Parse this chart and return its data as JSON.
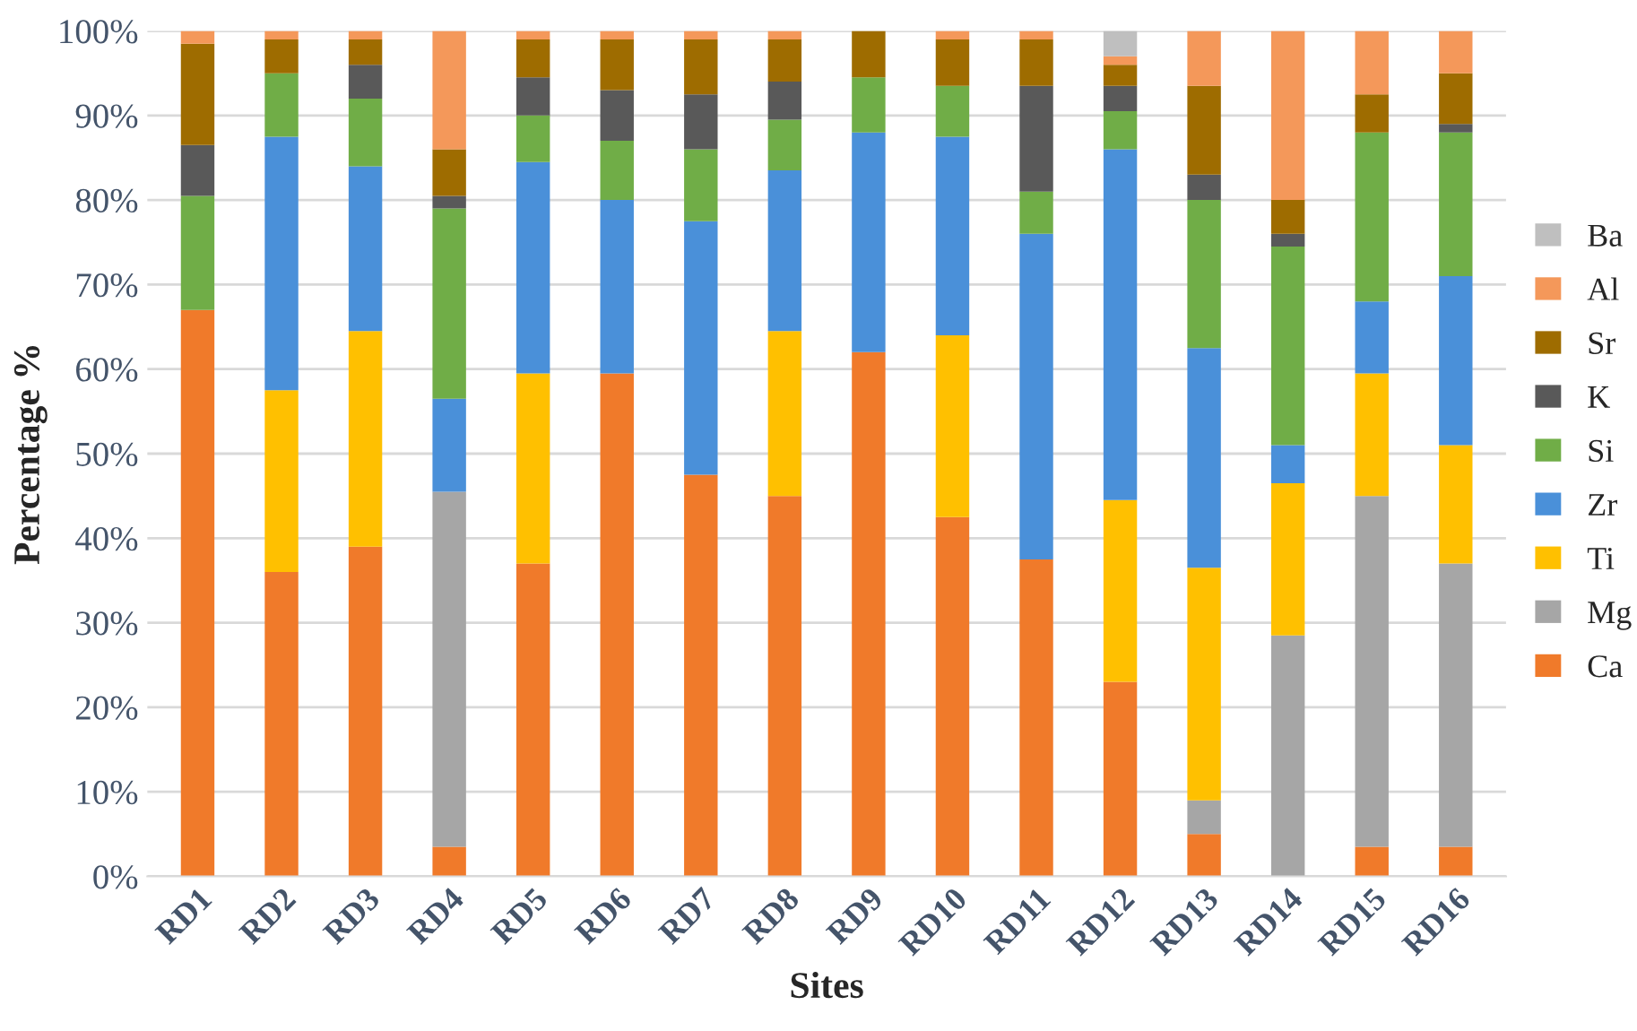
{
  "chart_data": {
    "type": "bar",
    "stacked": true,
    "xlabel": "Sites",
    "ylabel": "Percentage %",
    "categories": [
      "RD1",
      "RD2",
      "RD3",
      "RD4",
      "RD5",
      "RD6",
      "RD7",
      "RD8",
      "RD9",
      "RD10",
      "RD11",
      "RD12",
      "RD13",
      "RD14",
      "RD15",
      "RD16"
    ],
    "series": [
      {
        "name": "Ca",
        "color": "#f07a2a",
        "values": [
          67,
          36,
          39,
          3.5,
          37,
          59.5,
          47.5,
          45,
          62,
          42.5,
          37.5,
          23,
          5,
          0,
          3.5,
          3.5
        ]
      },
      {
        "name": "Mg",
        "color": "#a6a6a6",
        "values": [
          0,
          0,
          0,
          42,
          0,
          0,
          0,
          0,
          0,
          0,
          0,
          0,
          4,
          28.5,
          41.5,
          33.5
        ]
      },
      {
        "name": "Ti",
        "color": "#ffc000",
        "values": [
          0,
          21.5,
          25.5,
          0,
          22.5,
          0,
          0,
          19.5,
          0,
          21.5,
          0,
          21.5,
          27.5,
          18,
          14.5,
          14
        ]
      },
      {
        "name": "Zr",
        "color": "#4a90d9",
        "values": [
          0,
          30,
          19.5,
          11,
          25,
          20.5,
          30,
          19,
          26,
          23.5,
          38.5,
          41.5,
          26,
          4.5,
          8.5,
          20
        ]
      },
      {
        "name": "Si",
        "color": "#70ad47",
        "values": [
          13.5,
          7.5,
          8,
          22.5,
          5.5,
          7,
          8.5,
          6,
          6.5,
          6,
          5,
          4.5,
          17.5,
          23.5,
          20,
          17
        ]
      },
      {
        "name": "K",
        "color": "#595959",
        "values": [
          6,
          0,
          4,
          1.5,
          4.5,
          6,
          6.5,
          4.5,
          0,
          0,
          12.5,
          3,
          3,
          1.5,
          0,
          1
        ]
      },
      {
        "name": "Sr",
        "color": "#9e6c00",
        "values": [
          12,
          4,
          3,
          5.5,
          4.5,
          6,
          6.5,
          5,
          5.5,
          5.5,
          5.5,
          2.5,
          10.5,
          4,
          4.5,
          6
        ]
      },
      {
        "name": "Al",
        "color": "#f4985a",
        "values": [
          1.5,
          1,
          1,
          14,
          1,
          1,
          1,
          1,
          0,
          1,
          1,
          1,
          6.5,
          20,
          7.5,
          5
        ]
      },
      {
        "name": "Ba",
        "color": "#bfbfbf",
        "values": [
          0,
          0,
          0,
          0,
          0,
          0,
          0,
          0,
          0,
          0,
          0,
          3,
          0,
          0,
          0,
          0
        ]
      }
    ],
    "ylim": [
      0,
      100
    ],
    "yticks": [
      {
        "value": 0,
        "label": "0%"
      },
      {
        "value": 10,
        "label": "10%"
      },
      {
        "value": 20,
        "label": "20%"
      },
      {
        "value": 30,
        "label": "30%"
      },
      {
        "value": 40,
        "label": "40%"
      },
      {
        "value": 50,
        "label": "50%"
      },
      {
        "value": 60,
        "label": "60%"
      },
      {
        "value": 70,
        "label": "70%"
      },
      {
        "value": 80,
        "label": "80%"
      },
      {
        "value": 90,
        "label": "90%"
      },
      {
        "value": 100,
        "label": "100%"
      }
    ],
    "grid": "y",
    "legend": "right"
  }
}
